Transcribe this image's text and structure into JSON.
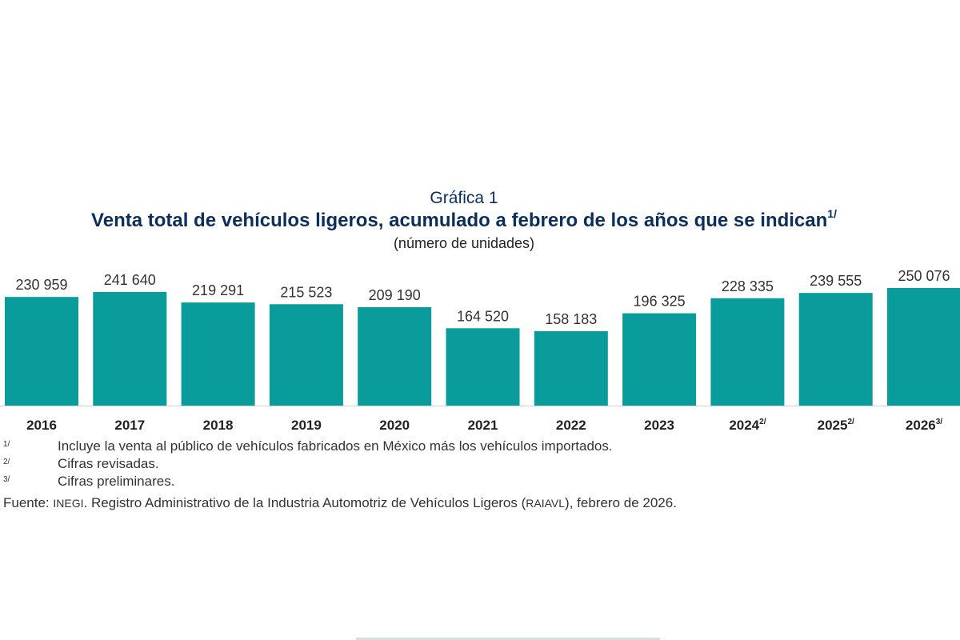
{
  "caption": {
    "label": "Gráfica 1",
    "title": "Venta total de vehículos ligeros, acumulado a febrero de los años que se indican",
    "title_note": "1/",
    "subtitle": "(número de unidades)"
  },
  "chart_data": {
    "type": "bar",
    "categories": [
      "2016",
      "2017",
      "2018",
      "2019",
      "2020",
      "2021",
      "2022",
      "2023",
      "2024",
      "2025",
      "2026"
    ],
    "category_notes": [
      "",
      "",
      "",
      "",
      "",
      "",
      "",
      "",
      "2/",
      "2/",
      "3/"
    ],
    "values": [
      230959,
      241640,
      219291,
      215523,
      209190,
      164520,
      158183,
      196325,
      228335,
      239555,
      250076
    ],
    "value_labels": [
      "230 959",
      "241 640",
      "219 291",
      "215 523",
      "209 190",
      "164 520",
      "158 183",
      "196 325",
      "228 335",
      "239 555",
      "250 076"
    ],
    "title": "Venta total de vehículos ligeros, acumulado a febrero de los años que se indican",
    "xlabel": "",
    "ylabel": "número de unidades",
    "ylim": [
      0,
      250076
    ],
    "grid": false,
    "bar_color": "#0a9b9b"
  },
  "notes": [
    {
      "marker": "1/",
      "text": "Incluye la venta al público de vehículos fabricados en México más los vehículos importados."
    },
    {
      "marker": "2/",
      "text": "Cifras revisadas."
    },
    {
      "marker": "3/",
      "text": "Cifras preliminares."
    }
  ],
  "source": {
    "prefix": "Fuente: ",
    "org": "INEGI",
    "text1": ". Registro Administrativo de la Industria Automotriz de Vehículos Ligeros (",
    "abbr": "RAIAVL",
    "text2": "), febrero de 2026."
  }
}
